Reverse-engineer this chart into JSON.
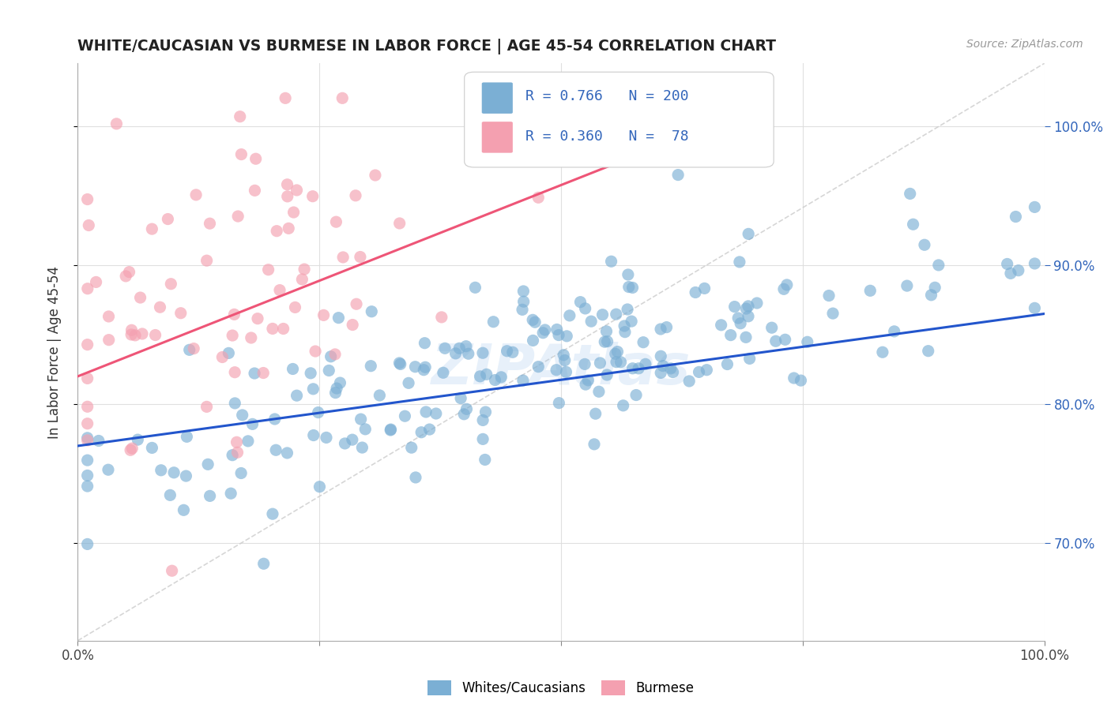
{
  "title": "WHITE/CAUCASIAN VS BURMESE IN LABOR FORCE | AGE 45-54 CORRELATION CHART",
  "source": "Source: ZipAtlas.com",
  "ylabel": "In Labor Force | Age 45-54",
  "watermark": "ZIPAtlas",
  "blue_R": 0.766,
  "blue_N": 200,
  "pink_R": 0.36,
  "pink_N": 78,
  "blue_color": "#7BAFD4",
  "pink_color": "#F4A0B0",
  "blue_line_color": "#2255CC",
  "pink_line_color": "#EE5577",
  "diagonal_color": "#CCCCCC",
  "background_color": "#FFFFFF",
  "grid_color": "#DDDDDD",
  "xlim": [
    0.0,
    1.0
  ],
  "ylim": [
    0.63,
    1.045
  ],
  "legend_labels": [
    "Whites/Caucasians",
    "Burmese"
  ],
  "yticks_right": [
    0.7,
    0.8,
    0.9,
    1.0
  ],
  "ytick_labels_right": [
    "70.0%",
    "80.0%",
    "90.0%",
    "100.0%"
  ],
  "blue_trend_x0": 0.0,
  "blue_trend_y0": 0.77,
  "blue_trend_x1": 1.0,
  "blue_trend_y1": 0.865,
  "pink_trend_x0": 0.0,
  "pink_trend_y0": 0.82,
  "pink_trend_x1": 0.6,
  "pink_trend_y1": 0.985
}
